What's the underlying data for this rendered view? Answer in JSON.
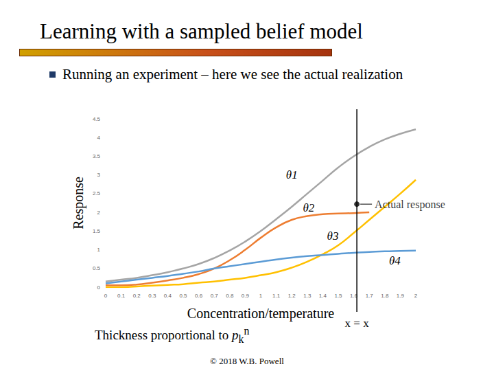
{
  "slide": {
    "title": "Learning with a sampled belief model",
    "bullet": "Running an experiment – here we see the actual realization",
    "note": "Thickness proportional to ",
    "note_symbol": {
      "base": "p",
      "sub": "k",
      "sup": "n"
    },
    "footer": "© 2018 W.B. Powell"
  },
  "chart_data": {
    "type": "line",
    "x_label": "Concentration/temperature",
    "y_label": "Response",
    "x": [
      0,
      0.1,
      0.2,
      0.3,
      0.4,
      0.5,
      0.6,
      0.7,
      0.8,
      0.9,
      1,
      1.1,
      1.2,
      1.3,
      1.4,
      1.5,
      1.6,
      1.7,
      1.8,
      1.9,
      2
    ],
    "series": [
      {
        "name": "θ1",
        "color": "#a5a5a5",
        "values": [
          0.15,
          0.2,
          0.25,
          0.32,
          0.4,
          0.5,
          0.62,
          0.78,
          0.98,
          1.22,
          1.5,
          1.82,
          2.15,
          2.5,
          2.85,
          3.2,
          3.5,
          3.75,
          3.95,
          4.1,
          4.22
        ]
      },
      {
        "name": "θ2",
        "color": "#ed7d31",
        "values": [
          0.05,
          0.05,
          0.07,
          0.12,
          0.18,
          0.25,
          0.35,
          0.5,
          0.72,
          1.0,
          1.32,
          1.6,
          1.8,
          1.9,
          1.95,
          1.97,
          1.98,
          2.0,
          null,
          null,
          null
        ]
      },
      {
        "name": "θ3",
        "color": "#ffc000",
        "values": [
          0,
          0,
          0.02,
          0.04,
          0.06,
          0.08,
          0.12,
          0.15,
          0.2,
          0.25,
          0.32,
          0.4,
          0.52,
          0.68,
          0.88,
          1.12,
          1.45,
          1.8,
          2.15,
          2.5,
          2.87
        ]
      },
      {
        "name": "θ4",
        "color": "#5b9bd5",
        "values": [
          0.1,
          0.15,
          0.2,
          0.25,
          0.3,
          0.36,
          0.42,
          0.5,
          0.56,
          0.62,
          0.68,
          0.74,
          0.79,
          0.83,
          0.86,
          0.89,
          0.92,
          0.94,
          0.96,
          0.97,
          0.98
        ]
      }
    ],
    "experiment_x": 1.62,
    "experiment_label": "x = x",
    "actual_response": {
      "x": 1.62,
      "y": 2.22,
      "label": "Actual response",
      "color": "#000000"
    },
    "xlim": [
      0,
      2
    ],
    "xticks": [
      0,
      0.1,
      0.2,
      0.3,
      0.4,
      0.5,
      0.6,
      0.7,
      0.8,
      0.9,
      1,
      1.1,
      1.2,
      1.3,
      1.4,
      1.5,
      1.6,
      1.7,
      1.8,
      1.9,
      2
    ],
    "ylim": [
      0,
      4.5
    ],
    "yticks": [
      0,
      0.5,
      1,
      1.5,
      2,
      2.5,
      3,
      3.5,
      4,
      4.5
    ],
    "grid": false
  }
}
